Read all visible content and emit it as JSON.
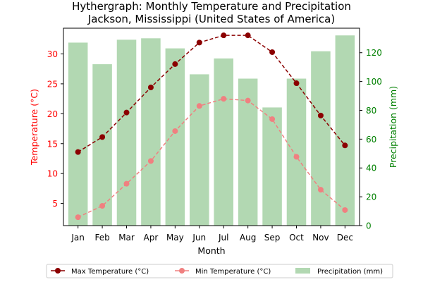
{
  "chart_data": {
    "type": "bar+line",
    "title": "Hythergraph: Monthly Temperature and Precipitation",
    "subtitle": "Jackson, Mississippi (United States of America)",
    "xlabel": "Month",
    "ylabel_left": "Temperature (°C)",
    "ylabel_right": "Precipitation (mm)",
    "categories": [
      "Jan",
      "Feb",
      "Mar",
      "Apr",
      "May",
      "Jun",
      "Jul",
      "Aug",
      "Sep",
      "Oct",
      "Nov",
      "Dec"
    ],
    "ylim_left": [
      1.3,
      34.3
    ],
    "ylim_right": [
      0,
      137
    ],
    "yticks_left": [
      "5",
      "10",
      "15",
      "20",
      "25",
      "30"
    ],
    "yticks_right": [
      "0",
      "20",
      "40",
      "60",
      "80",
      "100",
      "120"
    ],
    "grid": false,
    "legend_position": "bottom",
    "series": [
      {
        "name": "Max Temperature (°C)",
        "kind": "line",
        "axis": "left",
        "color": "#8b0000",
        "style": "dashed",
        "values": [
          13.6,
          16.1,
          20.2,
          24.4,
          28.3,
          31.9,
          33.1,
          33.1,
          30.3,
          25.1,
          19.7,
          14.7
        ]
      },
      {
        "name": "Min Temperature (°C)",
        "kind": "line",
        "axis": "left",
        "color": "#f08080",
        "style": "dashed",
        "values": [
          2.7,
          4.6,
          8.3,
          12.1,
          17.1,
          21.3,
          22.5,
          22.2,
          19.1,
          12.8,
          7.3,
          3.9
        ]
      },
      {
        "name": "Precipitation (mm)",
        "kind": "bar",
        "axis": "right",
        "color": "#b2d8b2",
        "values": [
          127,
          112,
          129,
          130,
          123,
          105,
          116,
          102,
          82,
          102,
          121,
          132
        ]
      }
    ]
  }
}
